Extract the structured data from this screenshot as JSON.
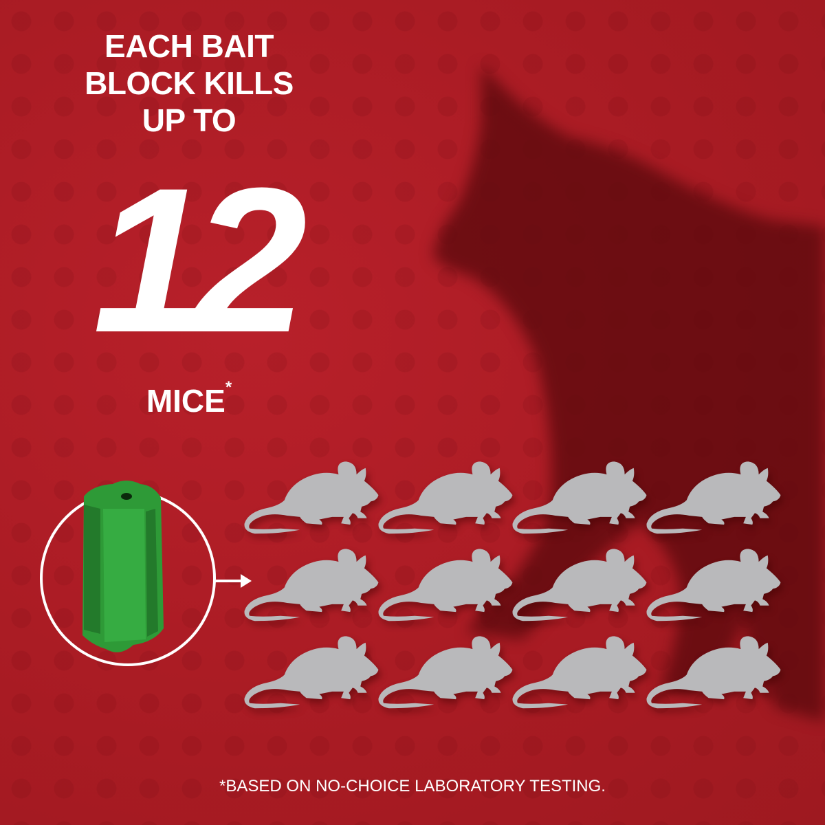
{
  "headline": {
    "line1": "EACH BAIT",
    "line2": "BLOCK KILLS",
    "line3": "UP TO"
  },
  "count": "12",
  "unit": "MICE",
  "unit_mark": "*",
  "footnote": "*BASED ON NO-CHOICE LABORATORY TESTING.",
  "mice_count": 12,
  "icons": {
    "product": "green-bait-block",
    "arrow": "arrow-right-icon",
    "mouse": "mouse-silhouette",
    "background": "cat-shadow"
  },
  "colors": {
    "background": "#b31d25",
    "mouse": "#b9b9bb",
    "bait": "#2f9e3a",
    "text": "#ffffff"
  }
}
